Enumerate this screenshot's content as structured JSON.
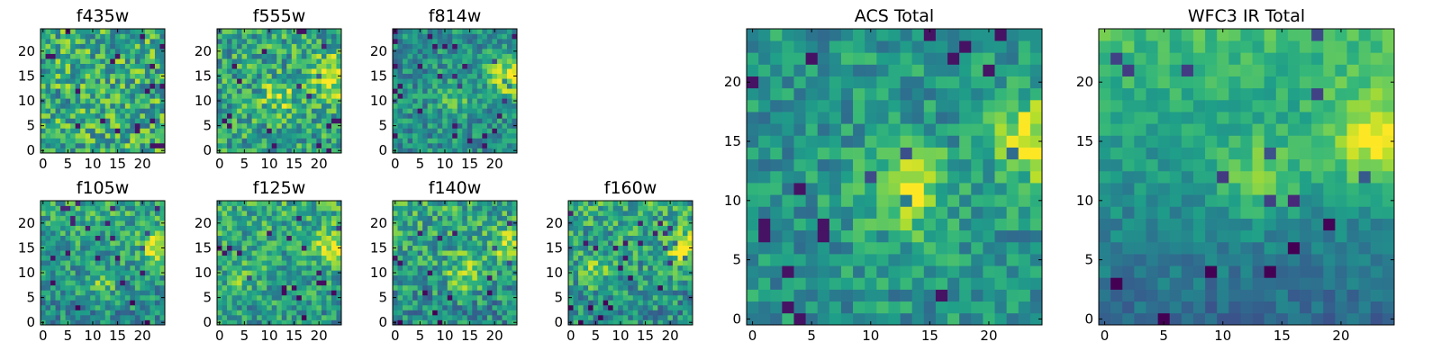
{
  "chart_data": [
    {
      "type": "heatmap",
      "title": "f435w",
      "xticks": [
        0,
        5,
        10,
        15,
        20
      ],
      "yticks": [
        0,
        5,
        10,
        15,
        20
      ],
      "xlim": [
        0,
        24
      ],
      "ylim": [
        0,
        24
      ],
      "grid": false,
      "colormap": "viridis"
    },
    {
      "type": "heatmap",
      "title": "f555w",
      "xticks": [
        0,
        5,
        10,
        15,
        20
      ],
      "yticks": [
        0,
        5,
        10,
        15,
        20
      ],
      "xlim": [
        0,
        24
      ],
      "ylim": [
        0,
        24
      ],
      "grid": false,
      "colormap": "viridis"
    },
    {
      "type": "heatmap",
      "title": "f814w",
      "xticks": [
        0,
        5,
        10,
        15,
        20
      ],
      "yticks": [
        0,
        5,
        10,
        15,
        20
      ],
      "xlim": [
        0,
        24
      ],
      "ylim": [
        0,
        24
      ],
      "grid": false,
      "colormap": "viridis"
    },
    {
      "type": "heatmap",
      "title": "f105w",
      "xticks": [
        0,
        5,
        10,
        15,
        20
      ],
      "yticks": [
        0,
        5,
        10,
        15,
        20
      ],
      "xlim": [
        0,
        24
      ],
      "ylim": [
        0,
        24
      ],
      "grid": false,
      "colormap": "viridis"
    },
    {
      "type": "heatmap",
      "title": "f125w",
      "xticks": [
        0,
        5,
        10,
        15,
        20
      ],
      "yticks": [
        0,
        5,
        10,
        15,
        20
      ],
      "xlim": [
        0,
        24
      ],
      "ylim": [
        0,
        24
      ],
      "grid": false,
      "colormap": "viridis"
    },
    {
      "type": "heatmap",
      "title": "f140w",
      "xticks": [
        0,
        5,
        10,
        15,
        20
      ],
      "yticks": [
        0,
        5,
        10,
        15,
        20
      ],
      "xlim": [
        0,
        24
      ],
      "ylim": [
        0,
        24
      ],
      "grid": false,
      "colormap": "viridis"
    },
    {
      "type": "heatmap",
      "title": "f160w",
      "xticks": [
        0,
        5,
        10,
        15,
        20
      ],
      "yticks": [
        0,
        5,
        10,
        15,
        20
      ],
      "xlim": [
        0,
        24
      ],
      "ylim": [
        0,
        24
      ],
      "grid": false,
      "colormap": "viridis"
    },
    {
      "type": "heatmap",
      "title": "ACS Total",
      "xticks": [
        0,
        5,
        10,
        15,
        20
      ],
      "yticks": [
        0,
        5,
        10,
        15,
        20
      ],
      "xlim": [
        0,
        24
      ],
      "ylim": [
        0,
        24
      ],
      "grid": false,
      "colormap": "viridis"
    },
    {
      "type": "heatmap",
      "title": "WFC3 IR Total",
      "xticks": [
        0,
        5,
        10,
        15,
        20
      ],
      "yticks": [
        0,
        5,
        10,
        15,
        20
      ],
      "xlim": [
        0,
        24
      ],
      "ylim": [
        0,
        24
      ],
      "grid": false,
      "colormap": "viridis"
    }
  ]
}
